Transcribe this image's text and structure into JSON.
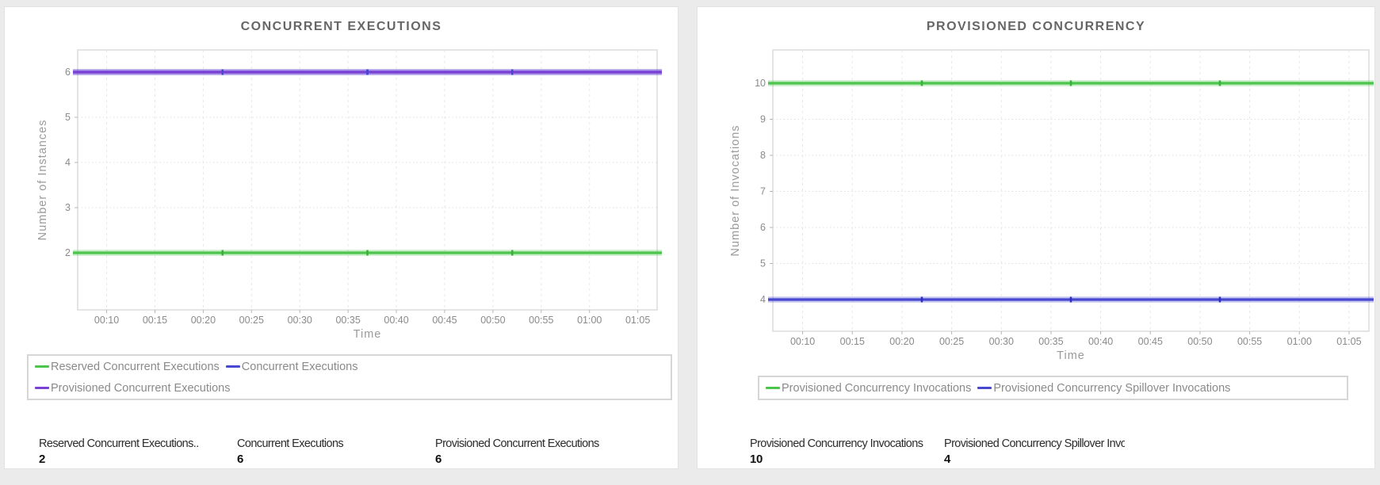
{
  "page": {
    "background": "#ebebeb"
  },
  "cards": [
    {
      "title": "CONCURRENT EXECUTIONS",
      "stats": [
        {
          "label": "Reserved Concurrent Executions..",
          "value": "2"
        },
        {
          "label": "Concurrent Executions",
          "value": "6"
        },
        {
          "label": "Provisioned Concurrent Executions",
          "value": "6"
        }
      ]
    },
    {
      "title": "PROVISIONED CONCURRENCY",
      "stats": [
        {
          "label": "Provisioned Concurrency Invocations",
          "value": "10"
        },
        {
          "label": "Provisioned Concurrency Spillover Invocations",
          "value": "4"
        }
      ]
    }
  ],
  "chart_data": [
    {
      "type": "line",
      "title": "CONCURRENT EXECUTIONS",
      "xlabel": "Time",
      "ylabel": "Number of Instances",
      "x_ticks": [
        "00:10",
        "00:15",
        "00:20",
        "00:25",
        "00:30",
        "00:35",
        "00:40",
        "00:45",
        "00:50",
        "00:55",
        "01:00",
        "01:05"
      ],
      "x_tick_minutes": [
        10,
        15,
        20,
        25,
        30,
        35,
        40,
        45,
        50,
        55,
        60,
        65
      ],
      "x_range_minutes": [
        7,
        67
      ],
      "y_ticks": [
        2,
        3,
        4,
        5,
        6
      ],
      "ylim": [
        1.2,
        6.5
      ],
      "marker_minutes": [
        22,
        37,
        52
      ],
      "grid": true,
      "series": [
        {
          "name": "Concurrent Executions",
          "y": 6,
          "color": "#4747cf",
          "marker_color": "#2e2ec2"
        },
        {
          "name": "Provisioned Concurrent Executions",
          "y": 6,
          "color": "#7b40d6",
          "marker_color": "#4747cf"
        },
        {
          "name": "Reserved Concurrent Executions",
          "y": 2,
          "color": "#4cc54c",
          "marker_color": "#33b233"
        }
      ],
      "legend": {
        "position": "bottom",
        "rows": [
          [
            {
              "label": "Reserved Concurrent Executions",
              "color": "#4cc54c"
            },
            {
              "label": "Concurrent Executions",
              "color": "#4747cf"
            }
          ],
          [
            {
              "label": "Provisioned Concurrent Executions",
              "color": "#7b40d6"
            }
          ]
        ]
      }
    },
    {
      "type": "line",
      "title": "PROVISIONED CONCURRENCY",
      "xlabel": "Time",
      "ylabel": "Number of Invocations",
      "x_ticks": [
        "00:10",
        "00:15",
        "00:20",
        "00:25",
        "00:30",
        "00:35",
        "00:40",
        "00:45",
        "00:50",
        "00:55",
        "01:00",
        "01:05"
      ],
      "x_tick_minutes": [
        10,
        15,
        20,
        25,
        30,
        35,
        40,
        45,
        50,
        55,
        60,
        65
      ],
      "x_range_minutes": [
        7,
        67
      ],
      "y_ticks": [
        4,
        5,
        6,
        7,
        8,
        9,
        10
      ],
      "ylim": [
        3.1,
        10.9
      ],
      "marker_minutes": [
        22,
        37,
        52
      ],
      "grid": true,
      "series": [
        {
          "name": "Provisioned Concurrency Invocations",
          "y": 10,
          "color": "#4cc54c",
          "marker_color": "#33b233"
        },
        {
          "name": "Provisioned Concurrency Spillover Invocations",
          "y": 4,
          "color": "#4747cf",
          "marker_color": "#2e2ec2"
        }
      ],
      "legend": {
        "position": "bottom",
        "rows": [
          [
            {
              "label": "Provisioned Concurrency Invocations",
              "color": "#4cc54c"
            },
            {
              "label": "Provisioned Concurrency Spillover Invocations",
              "color": "#4747cf"
            }
          ]
        ]
      }
    }
  ]
}
